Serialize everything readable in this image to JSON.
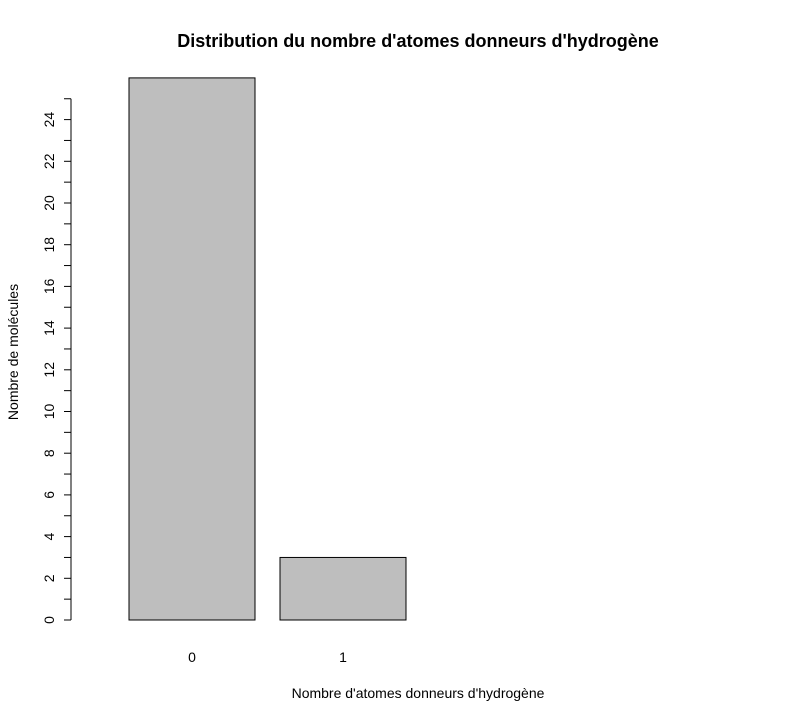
{
  "chart_data": {
    "type": "bar",
    "title": "Distribution du nombre d'atomes donneurs d'hydrogène",
    "xlabel": "Nombre d'atomes donneurs d'hydrogène",
    "ylabel": "Nombre de molécules",
    "categories": [
      "0",
      "1"
    ],
    "values": [
      26,
      3
    ],
    "ylim": [
      0,
      26
    ],
    "y_ticks_labeled": [
      0,
      2,
      4,
      6,
      8,
      10,
      12,
      14,
      16,
      18,
      20,
      22,
      24
    ],
    "y_ticks_minor": [
      1,
      3,
      5,
      7,
      9,
      11,
      13,
      15,
      17,
      19,
      21,
      23,
      25
    ],
    "grid": false,
    "bar_color": "#bebebe"
  }
}
